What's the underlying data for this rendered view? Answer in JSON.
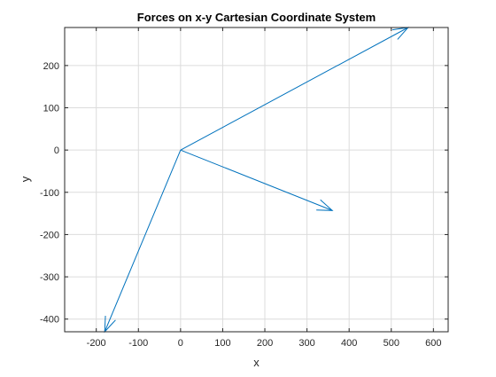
{
  "chart_data": {
    "type": "line",
    "title": "Forces on x-y Cartesian Coordinate System",
    "xlabel": "x",
    "ylabel": "y",
    "xlim": [
      -275,
      635
    ],
    "ylim": [
      -430,
      290
    ],
    "xticks": [
      -200,
      -100,
      0,
      100,
      200,
      300,
      400,
      500,
      600
    ],
    "yticks": [
      -400,
      -300,
      -200,
      -100,
      0,
      100,
      200
    ],
    "xtick_labels": [
      "-200",
      "-100",
      "0",
      "100",
      "200",
      "300",
      "400",
      "500",
      "600"
    ],
    "ytick_labels": [
      "-400",
      "-300",
      "-200",
      "-100",
      "0",
      "100",
      "200"
    ],
    "grid": true,
    "series_color": "#0072bd",
    "vectors": [
      {
        "x0": 0,
        "y0": 0,
        "x1": 540,
        "y1": 290
      },
      {
        "x0": 0,
        "y0": 0,
        "x1": 360,
        "y1": -143
      },
      {
        "x0": 0,
        "y0": 0,
        "x1": -180,
        "y1": -430
      }
    ]
  }
}
